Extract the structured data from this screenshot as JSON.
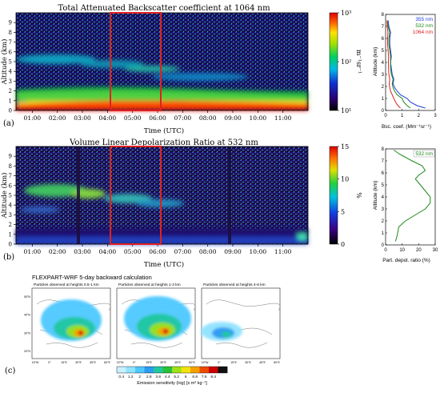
{
  "chart_data": [
    {
      "panel": "(a)",
      "type": "heatmap",
      "title": "Total Attenuated Backscatter coefficient at 1064 nm",
      "xlabel": "Time (UTC)",
      "ylabel": "Altitude (km)",
      "xticks": [
        "01:00",
        "02:00",
        "03:00",
        "04:00",
        "05:00",
        "06:00",
        "07:00",
        "08:00",
        "09:00",
        "10:00",
        "11:00"
      ],
      "xlim": [
        0.35,
        12.0
      ],
      "ylim": [
        0,
        10
      ],
      "yticks": [
        0,
        1,
        2,
        3,
        4,
        5,
        6,
        7,
        8,
        9
      ],
      "highlight_box": {
        "x": [
          3.6,
          6.05
        ],
        "y": [
          0,
          10
        ],
        "color": "#e02020"
      },
      "colorbar": {
        "scale": "log",
        "range": [
          10,
          1000
        ],
        "ticks": [
          "10¹",
          "10²",
          "10³"
        ],
        "label": "m⁻¹sr⁻¹"
      }
    },
    {
      "panel": "(a)",
      "type": "line",
      "xlabel": "Bsc. coef. (Mm⁻¹sr⁻¹)",
      "ylabel": "Altitude (km)",
      "xlim": [
        0,
        3
      ],
      "ylim": [
        0,
        8
      ],
      "xticks": [
        0,
        1,
        2,
        3
      ],
      "yticks": [
        0,
        1,
        2,
        3,
        4,
        5,
        6,
        7,
        8
      ],
      "legend_position": "top-right",
      "series": [
        {
          "name": "355 nm",
          "color": "#1f3fd8",
          "x": [
            2.4,
            1.9,
            1.5,
            1.3,
            0.9,
            0.7,
            0.55,
            0.45,
            0.5,
            0.4,
            0.35,
            0.3,
            0.35,
            0.3,
            0.25,
            0.25,
            0.3,
            0.2,
            0.15
          ],
          "y": [
            0.2,
            0.4,
            0.7,
            1.0,
            1.3,
            1.6,
            1.9,
            2.2,
            2.6,
            3.0,
            3.5,
            4.0,
            4.5,
            5.0,
            5.5,
            6.0,
            6.5,
            7.0,
            7.5
          ]
        },
        {
          "name": "532 nm",
          "color": "#1a8a1a",
          "x": [
            1.5,
            1.3,
            1.1,
            1.0,
            0.7,
            0.55,
            0.45,
            0.4,
            0.45,
            0.35,
            0.3,
            0.3,
            0.3,
            0.25,
            0.2,
            0.2,
            0.25,
            0.15,
            0.1
          ],
          "y": [
            0.2,
            0.4,
            0.7,
            1.0,
            1.3,
            1.6,
            1.9,
            2.2,
            2.6,
            3.0,
            3.5,
            4.0,
            4.5,
            5.0,
            5.5,
            6.0,
            6.5,
            7.0,
            7.5
          ]
        },
        {
          "name": "1064 nm",
          "color": "#e02020",
          "x": [
            0.9,
            0.75,
            0.6,
            0.5,
            0.4,
            0.3,
            0.25,
            0.22,
            0.25,
            0.2,
            0.18,
            0.17,
            0.18,
            0.15,
            0.12,
            0.12,
            0.14,
            0.1,
            0.08
          ],
          "y": [
            0.2,
            0.4,
            0.7,
            1.0,
            1.3,
            1.6,
            1.9,
            2.2,
            2.6,
            3.0,
            3.5,
            4.0,
            4.5,
            5.0,
            5.5,
            6.0,
            6.5,
            7.0,
            7.5
          ]
        }
      ]
    },
    {
      "panel": "(b)",
      "type": "heatmap",
      "title": "Volume Linear Depolarization Ratio at 532 nm",
      "xlabel": "Time (UTC)",
      "ylabel": "Altitude (km)",
      "xticks": [
        "01:00",
        "02:00",
        "03:00",
        "04:00",
        "05:00",
        "06:00",
        "07:00",
        "08:00",
        "09:00",
        "10:00",
        "11:00"
      ],
      "xlim": [
        0.35,
        12.0
      ],
      "ylim": [
        0,
        10
      ],
      "yticks": [
        0,
        1,
        2,
        3,
        4,
        5,
        6,
        7,
        8,
        9
      ],
      "highlight_box": {
        "x": [
          3.6,
          6.05
        ],
        "y": [
          0,
          10
        ],
        "color": "#e02020"
      },
      "colorbar": {
        "scale": "linear",
        "range": [
          0,
          15
        ],
        "ticks": [
          "0",
          "5",
          "10",
          "15"
        ],
        "label": "%"
      }
    },
    {
      "panel": "(b)",
      "type": "line",
      "xlabel": "Part. depol. ratio (%)",
      "ylabel": "Altitude (km)",
      "xlim": [
        0,
        30
      ],
      "ylim": [
        0,
        8
      ],
      "xticks": [
        0,
        10,
        20,
        30
      ],
      "yticks": [
        0,
        1,
        2,
        3,
        4,
        5,
        6,
        7,
        8
      ],
      "legend_position": "top-right",
      "series": [
        {
          "name": "532 nm",
          "color": "#1a8a1a",
          "x": [
            6,
            7,
            8,
            12,
            18,
            24,
            27,
            27,
            24,
            21,
            18,
            20,
            24,
            22,
            16,
            12,
            8,
            5
          ],
          "y": [
            0.3,
            0.8,
            1.5,
            2.0,
            2.5,
            3.0,
            3.5,
            4.0,
            4.5,
            5.0,
            5.5,
            5.8,
            6.2,
            6.6,
            7.0,
            7.3,
            7.6,
            7.9
          ]
        }
      ]
    },
    {
      "panel": "(c)",
      "type": "heatmap",
      "title": "FLEXPART-WRF 5-day backward calculation",
      "maps": [
        {
          "subtitle": "Particles observed at heights 0.5-1 km"
        },
        {
          "subtitle": "Particles observed at heights 1-3 km"
        },
        {
          "subtitle": "Particles observed at heights 4-6 km"
        }
      ],
      "map_xticks": [
        "15°W",
        "0°",
        "15°E",
        "30°E",
        "45°E",
        "60°E"
      ],
      "map_yticks": [
        "50°N",
        "40°N",
        "30°N",
        "20°N"
      ],
      "colorbar": {
        "ticks": [
          "0.4",
          "1.2",
          "2",
          "2.8",
          "3.6",
          "4.4",
          "5.2",
          "6",
          "6.8",
          "7.6",
          "8.4"
        ],
        "colors": [
          "#c8f0ff",
          "#8fe3ff",
          "#4ec8ff",
          "#2d9bf0",
          "#22c7a0",
          "#28c03a",
          "#9be21a",
          "#f2e30e",
          "#f5a000",
          "#ee4a00",
          "#cc0000",
          "#111111"
        ],
        "label": "Emission sensitivity (log) [s m³ kg⁻¹]"
      }
    }
  ]
}
